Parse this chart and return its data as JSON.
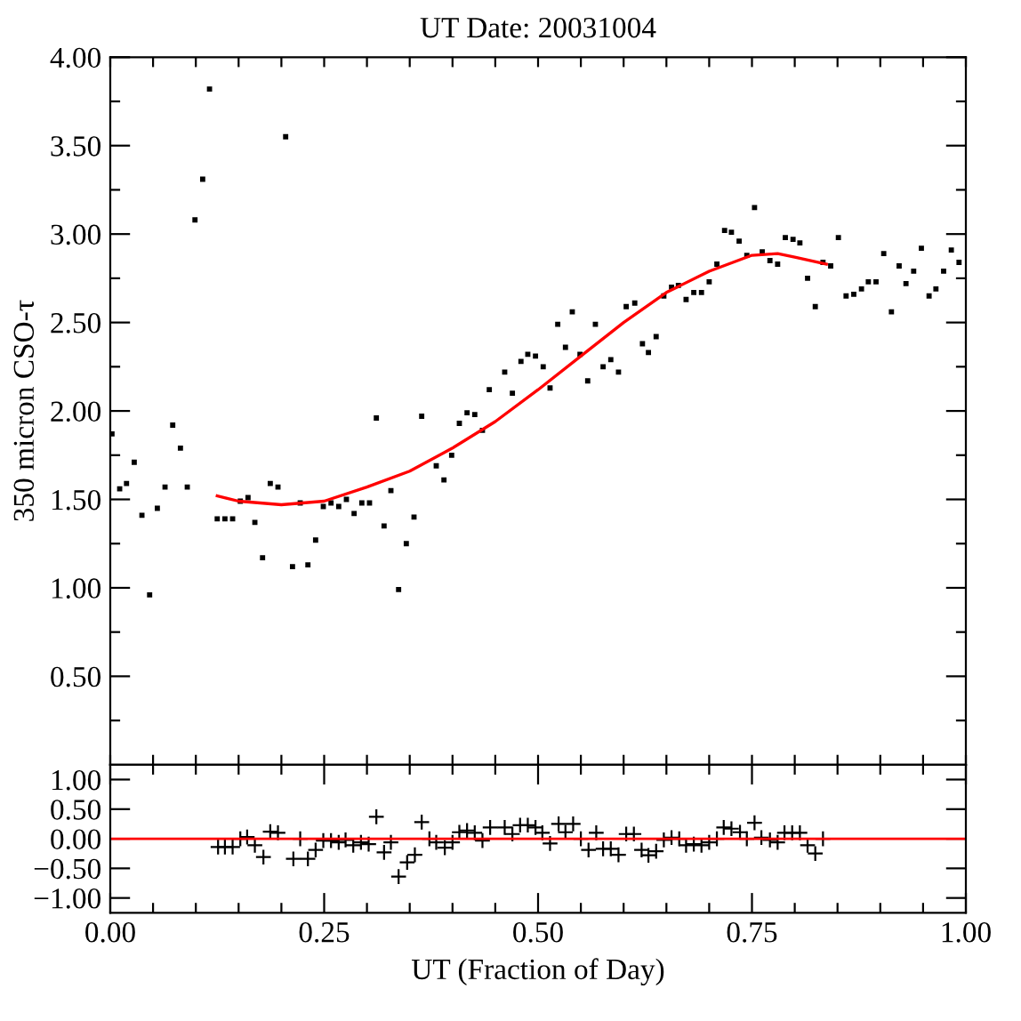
{
  "chart_data": [
    {
      "type": "scatter",
      "title": "UT Date: 20031004",
      "ylabel": "350 micron CSO-τ",
      "xlim": [
        0,
        1
      ],
      "ylim": [
        0,
        4
      ],
      "tick_labels": "y",
      "grid": false,
      "legend": false,
      "xticks": [
        {
          "value": 0,
          "label": null
        },
        {
          "value": 0.05,
          "label": null
        },
        {
          "value": 0.1,
          "label": null
        },
        {
          "value": 0.15,
          "label": null
        },
        {
          "value": 0.2,
          "label": null
        },
        {
          "value": 0.25,
          "label": null
        },
        {
          "value": 0.3,
          "label": null
        },
        {
          "value": 0.35,
          "label": null
        },
        {
          "value": 0.4,
          "label": null
        },
        {
          "value": 0.45,
          "label": null
        },
        {
          "value": 0.5,
          "label": null
        },
        {
          "value": 0.55,
          "label": null
        },
        {
          "value": 0.6,
          "label": null
        },
        {
          "value": 0.65,
          "label": null
        },
        {
          "value": 0.7,
          "label": null
        },
        {
          "value": 0.75,
          "label": null
        },
        {
          "value": 0.8,
          "label": null
        },
        {
          "value": 0.85,
          "label": null
        },
        {
          "value": 0.9,
          "label": null
        },
        {
          "value": 0.95,
          "label": null
        },
        {
          "value": 1,
          "label": null
        }
      ],
      "yticks": [
        {
          "value": 0.25,
          "label": null
        },
        {
          "value": 0.5,
          "label": "0.50"
        },
        {
          "value": 0.75,
          "label": null
        },
        {
          "value": 1,
          "label": "1.00"
        },
        {
          "value": 1.25,
          "label": null
        },
        {
          "value": 1.5,
          "label": "1.50"
        },
        {
          "value": 1.75,
          "label": null
        },
        {
          "value": 2,
          "label": "2.00"
        },
        {
          "value": 2.25,
          "label": null
        },
        {
          "value": 2.5,
          "label": "2.50"
        },
        {
          "value": 2.75,
          "label": null
        },
        {
          "value": 3,
          "label": "3.00"
        },
        {
          "value": 3.25,
          "label": null
        },
        {
          "value": 3.5,
          "label": "3.50"
        },
        {
          "value": 3.75,
          "label": null
        },
        {
          "value": 4,
          "label": "4.00"
        }
      ],
      "series": [
        {
          "marker": "square",
          "color": "#000000",
          "x": [
            0.002,
            0.011,
            0.019,
            0.028,
            0.037,
            0.046,
            0.055,
            0.064,
            0.073,
            0.082,
            0.09,
            0.099,
            0.108,
            0.116,
            0.125,
            0.134,
            0.143,
            0.152,
            0.161,
            0.169,
            0.178,
            0.187,
            0.196,
            0.205,
            0.213,
            0.222,
            0.231,
            0.24,
            0.249,
            0.258,
            0.267,
            0.276,
            0.285,
            0.294,
            0.303,
            0.311,
            0.32,
            0.328,
            0.337,
            0.346,
            0.355,
            0.364,
            0.381,
            0.39,
            0.399,
            0.408,
            0.417,
            0.426,
            0.435,
            0.443,
            0.461,
            0.47,
            0.48,
            0.488,
            0.497,
            0.506,
            0.514,
            0.523,
            0.532,
            0.54,
            0.549,
            0.558,
            0.567,
            0.576,
            0.585,
            0.594,
            0.603,
            0.613,
            0.622,
            0.629,
            0.638,
            0.647,
            0.656,
            0.664,
            0.673,
            0.682,
            0.691,
            0.7,
            0.709,
            0.718,
            0.726,
            0.735,
            0.744,
            0.753,
            0.762,
            0.771,
            0.78,
            0.789,
            0.798,
            0.806,
            0.815,
            0.824,
            0.833,
            0.842,
            0.851,
            0.86,
            0.869,
            0.878,
            0.886,
            0.895,
            0.904,
            0.913,
            0.922,
            0.93,
            0.939,
            0.948,
            0.957,
            0.965,
            0.974,
            0.983,
            0.992
          ],
          "values": [
            1.87,
            1.56,
            1.59,
            1.71,
            1.41,
            0.96,
            1.45,
            1.57,
            1.92,
            1.79,
            1.57,
            3.08,
            3.31,
            3.82,
            1.39,
            1.39,
            1.39,
            1.49,
            1.51,
            1.37,
            1.17,
            1.59,
            1.57,
            3.55,
            1.12,
            1.48,
            1.13,
            1.27,
            1.46,
            1.48,
            1.46,
            1.5,
            1.42,
            1.48,
            1.48,
            1.96,
            1.35,
            1.55,
            0.99,
            1.25,
            1.4,
            1.97,
            1.69,
            1.61,
            1.75,
            1.93,
            1.99,
            1.98,
            1.89,
            2.12,
            2.22,
            2.1,
            2.28,
            2.32,
            2.31,
            2.25,
            2.13,
            2.49,
            2.36,
            2.56,
            2.32,
            2.17,
            2.49,
            2.25,
            2.29,
            2.22,
            2.59,
            2.61,
            2.38,
            2.33,
            2.42,
            2.65,
            2.7,
            2.71,
            2.63,
            2.67,
            2.67,
            2.73,
            2.83,
            3.02,
            3.01,
            2.96,
            2.88,
            3.15,
            2.9,
            2.85,
            2.83,
            2.98,
            2.97,
            2.95,
            2.75,
            2.59,
            2.84,
            2.82,
            2.98,
            2.65,
            2.66,
            2.69,
            2.73,
            2.73,
            2.89,
            2.56,
            2.82,
            2.72,
            2.79,
            2.92,
            2.65,
            2.69,
            2.79,
            2.91,
            2.84
          ]
        },
        {
          "type": "line",
          "color": "#ff0000",
          "line_style": "solid",
          "x": [
            0.125,
            0.15,
            0.2,
            0.25,
            0.3,
            0.35,
            0.4,
            0.45,
            0.5,
            0.55,
            0.6,
            0.65,
            0.7,
            0.75,
            0.78,
            0.8,
            0.837
          ],
          "values": [
            1.52,
            1.49,
            1.47,
            1.49,
            1.57,
            1.66,
            1.79,
            1.94,
            2.12,
            2.31,
            2.5,
            2.67,
            2.79,
            2.88,
            2.89,
            2.87,
            2.83
          ]
        }
      ]
    },
    {
      "type": "scatter",
      "xlabel": "UT (Fraction of Day)",
      "xlim": [
        0,
        1
      ],
      "ylim": [
        -1.25,
        1.25
      ],
      "grid": false,
      "legend": false,
      "xticks": [
        {
          "value": 0,
          "label": "0.00"
        },
        {
          "value": 0.05,
          "label": null
        },
        {
          "value": 0.1,
          "label": null
        },
        {
          "value": 0.15,
          "label": null
        },
        {
          "value": 0.2,
          "label": null
        },
        {
          "value": 0.25,
          "label": "0.25"
        },
        {
          "value": 0.3,
          "label": null
        },
        {
          "value": 0.35,
          "label": null
        },
        {
          "value": 0.4,
          "label": null
        },
        {
          "value": 0.45,
          "label": null
        },
        {
          "value": 0.5,
          "label": "0.50"
        },
        {
          "value": 0.55,
          "label": null
        },
        {
          "value": 0.6,
          "label": null
        },
        {
          "value": 0.65,
          "label": null
        },
        {
          "value": 0.7,
          "label": null
        },
        {
          "value": 0.75,
          "label": "0.75"
        },
        {
          "value": 0.8,
          "label": null
        },
        {
          "value": 0.85,
          "label": null
        },
        {
          "value": 0.9,
          "label": null
        },
        {
          "value": 0.95,
          "label": null
        },
        {
          "value": 1,
          "label": "1.00"
        }
      ],
      "yticks": [
        {
          "value": -1,
          "label": "−1.00"
        },
        {
          "value": -0.5,
          "label": "−0.50"
        },
        {
          "value": 0,
          "label": "0.00"
        },
        {
          "value": 0.5,
          "label": "0.50"
        },
        {
          "value": 1,
          "label": "1.00"
        }
      ],
      "ref_lines": [
        {
          "axis": "y",
          "value": 0,
          "color": "#ff0000",
          "line_style": "solid"
        }
      ],
      "series": [
        {
          "marker": "cross",
          "color": "#000000",
          "x": [
            0.126,
            0.134,
            0.143,
            0.152,
            0.16,
            0.169,
            0.179,
            0.187,
            0.196,
            0.214,
            0.222,
            0.231,
            0.24,
            0.249,
            0.258,
            0.267,
            0.275,
            0.284,
            0.293,
            0.302,
            0.311,
            0.32,
            0.328,
            0.337,
            0.347,
            0.356,
            0.364,
            0.373,
            0.381,
            0.391,
            0.4,
            0.408,
            0.417,
            0.426,
            0.435,
            0.444,
            0.461,
            0.47,
            0.479,
            0.488,
            0.497,
            0.505,
            0.514,
            0.524,
            0.532,
            0.541,
            0.55,
            0.559,
            0.568,
            0.576,
            0.585,
            0.594,
            0.603,
            0.612,
            0.621,
            0.629,
            0.638,
            0.647,
            0.656,
            0.665,
            0.673,
            0.682,
            0.691,
            0.7,
            0.709,
            0.717,
            0.726,
            0.736,
            0.744,
            0.753,
            0.761,
            0.771,
            0.78,
            0.788,
            0.797,
            0.806,
            0.815,
            0.824,
            0.833
          ],
          "values": [
            -0.14,
            -0.14,
            -0.14,
            0.0,
            0.03,
            -0.11,
            -0.31,
            0.12,
            0.1,
            -0.34,
            0.0,
            -0.34,
            -0.19,
            -0.03,
            -0.03,
            -0.06,
            -0.02,
            -0.11,
            -0.06,
            -0.09,
            0.37,
            -0.23,
            -0.06,
            -0.64,
            -0.4,
            -0.27,
            0.28,
            0.0,
            -0.06,
            -0.15,
            -0.06,
            0.11,
            0.14,
            0.1,
            -0.03,
            0.19,
            0.19,
            0.08,
            0.23,
            0.23,
            0.19,
            0.1,
            -0.08,
            0.25,
            0.11,
            0.25,
            0.0,
            -0.19,
            0.1,
            -0.17,
            -0.17,
            -0.27,
            0.08,
            0.08,
            -0.19,
            -0.28,
            -0.21,
            -0.02,
            0.02,
            0.0,
            -0.11,
            -0.09,
            -0.11,
            -0.06,
            0.0,
            0.19,
            0.17,
            0.11,
            0.0,
            0.27,
            0.02,
            -0.02,
            -0.06,
            0.1,
            0.1,
            0.1,
            -0.11,
            -0.25,
            0.0
          ]
        }
      ]
    }
  ]
}
